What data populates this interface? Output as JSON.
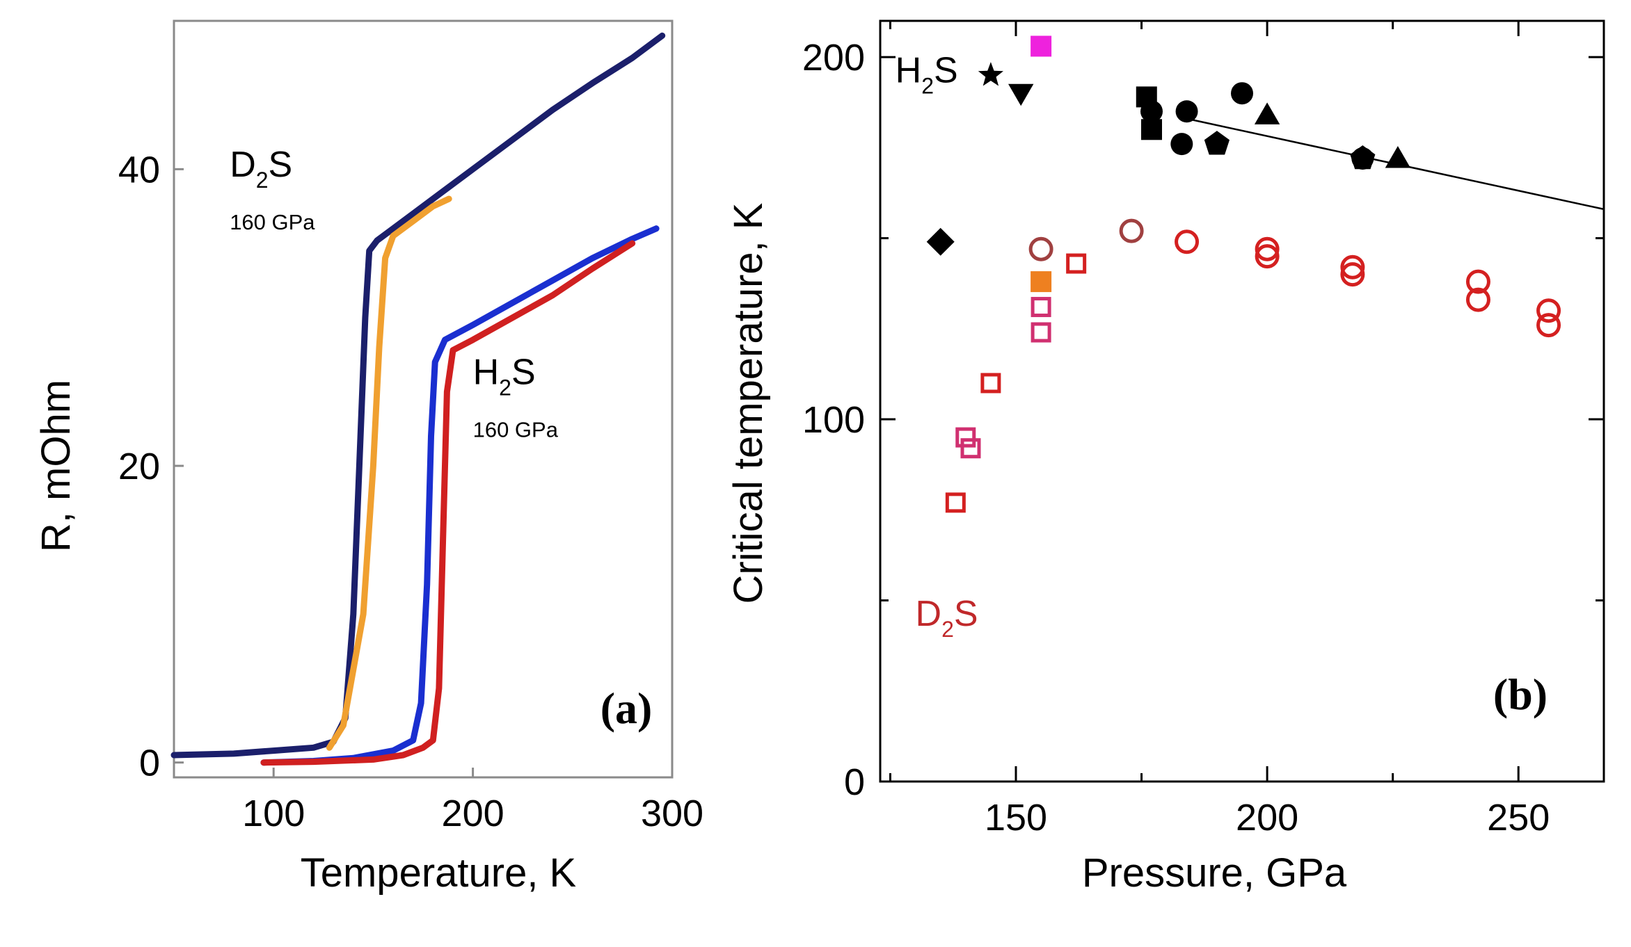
{
  "chart_data": [
    {
      "panel": "(a)",
      "type": "line",
      "xlabel": "Temperature, K",
      "ylabel": "R, mOhm",
      "xlim": [
        50,
        300
      ],
      "ylim": [
        -1,
        50
      ],
      "xticks": [
        "100",
        "200",
        "300"
      ],
      "xtick_values": [
        100,
        200,
        300
      ],
      "yticks": [
        "0",
        "20",
        "40"
      ],
      "ytick_values": [
        0,
        20,
        40
      ],
      "annotations": [
        {
          "id": "d2s",
          "main": "D",
          "sub": "2",
          "tail": "S",
          "note": "160 GPa",
          "x": 78,
          "y": 39.5
        },
        {
          "id": "h2s",
          "main": "H",
          "sub": "2",
          "tail": "S",
          "note": "160 GPa",
          "x": 200,
          "y": 25.5
        }
      ],
      "series": [
        {
          "name": "D2S dark",
          "color": "#1b1f6b",
          "points": [
            [
              50,
              0.5
            ],
            [
              80,
              0.6
            ],
            [
              100,
              0.8
            ],
            [
              120,
              1.0
            ],
            [
              130,
              1.4
            ],
            [
              136,
              3
            ],
            [
              140,
              10
            ],
            [
              143,
              20
            ],
            [
              146,
              30
            ],
            [
              148,
              34.5
            ],
            [
              152,
              35.2
            ],
            [
              160,
              36
            ],
            [
              170,
              37
            ],
            [
              180,
              38
            ],
            [
              200,
              40
            ],
            [
              220,
              42
            ],
            [
              240,
              44
            ],
            [
              260,
              45.8
            ],
            [
              280,
              47.5
            ],
            [
              295,
              49
            ]
          ]
        },
        {
          "name": "D2S orange",
          "color": "#f0a030",
          "points": [
            [
              128,
              1.0
            ],
            [
              135,
              2.5
            ],
            [
              145,
              10
            ],
            [
              150,
              20
            ],
            [
              153,
              28
            ],
            [
              156,
              34
            ],
            [
              160,
              35.5
            ],
            [
              170,
              36.5
            ],
            [
              180,
              37.5
            ],
            [
              188,
              38
            ]
          ]
        },
        {
          "name": "H2S blue",
          "color": "#1a2fd0",
          "points": [
            [
              95,
              0
            ],
            [
              120,
              0.1
            ],
            [
              140,
              0.3
            ],
            [
              160,
              0.8
            ],
            [
              170,
              1.5
            ],
            [
              174,
              4
            ],
            [
              177,
              12
            ],
            [
              179,
              22
            ],
            [
              181,
              27
            ],
            [
              186,
              28.5
            ],
            [
              200,
              29.5
            ],
            [
              220,
              31
            ],
            [
              240,
              32.5
            ],
            [
              260,
              34
            ],
            [
              280,
              35.3
            ],
            [
              292,
              36
            ]
          ]
        },
        {
          "name": "H2S red",
          "color": "#d02020",
          "points": [
            [
              95,
              0
            ],
            [
              120,
              0.05
            ],
            [
              150,
              0.2
            ],
            [
              165,
              0.5
            ],
            [
              175,
              1.0
            ],
            [
              180,
              1.5
            ],
            [
              183,
              5
            ],
            [
              185,
              15
            ],
            [
              187,
              25
            ],
            [
              190,
              27.8
            ],
            [
              200,
              28.5
            ],
            [
              220,
              30
            ],
            [
              240,
              31.5
            ],
            [
              260,
              33.3
            ],
            [
              280,
              35
            ]
          ]
        }
      ]
    },
    {
      "panel": "(b)",
      "type": "scatter",
      "xlabel": "Pressure, GPa",
      "ylabel": "Critical temperature, K",
      "xlim": [
        123,
        267
      ],
      "ylim": [
        0,
        210
      ],
      "xticks": [
        "150",
        "200",
        "250"
      ],
      "xtick_values": [
        150,
        200,
        250
      ],
      "yticks": [
        "0",
        "100",
        "200"
      ],
      "ytick_values": [
        0,
        100,
        200
      ],
      "annotations": [
        {
          "id": "h2s",
          "main": "H",
          "sub": "2",
          "tail": "S",
          "color": "#000000",
          "x": 126,
          "y": 193
        },
        {
          "id": "d2s",
          "main": "D",
          "sub": "2",
          "tail": "S",
          "color": "#c0282a",
          "x": 130,
          "y": 43
        }
      ],
      "fit_line": {
        "color": "#000000",
        "points": [
          [
            184,
            183
          ],
          [
            267,
            158
          ]
        ]
      },
      "series": [
        {
          "name": "H2S star",
          "marker": "star",
          "filled": true,
          "color": "#000000",
          "points": [
            [
              145,
              195
            ]
          ]
        },
        {
          "name": "H2S triangle down",
          "marker": "triangle-down",
          "filled": true,
          "color": "#000000",
          "points": [
            [
              151,
              190
            ]
          ]
        },
        {
          "name": "H2S diamond",
          "marker": "diamond",
          "filled": true,
          "color": "#000000",
          "points": [
            [
              135,
              149
            ]
          ]
        },
        {
          "name": "H2S square",
          "marker": "square",
          "filled": true,
          "color": "#000000",
          "points": [
            [
              176,
              189
            ],
            [
              177,
              180
            ]
          ]
        },
        {
          "name": "H2S circle",
          "marker": "circle",
          "filled": true,
          "color": "#000000",
          "points": [
            [
              177,
              185
            ],
            [
              183,
              176
            ],
            [
              184,
              185
            ],
            [
              195,
              190
            ],
            [
              219,
              172
            ]
          ]
        },
        {
          "name": "H2S pentagon",
          "marker": "pentagon",
          "filled": true,
          "color": "#000000",
          "points": [
            [
              190,
              176
            ],
            [
              219,
              172
            ]
          ]
        },
        {
          "name": "H2S triangle up",
          "marker": "triangle-up",
          "filled": true,
          "color": "#000000",
          "points": [
            [
              200,
              184
            ],
            [
              226,
              172
            ]
          ]
        },
        {
          "name": "D2S open circle",
          "marker": "circle",
          "filled": false,
          "color": "#d42020",
          "points": [
            [
              184,
              149
            ],
            [
              200,
              145
            ],
            [
              200,
              147
            ],
            [
              217,
              140
            ],
            [
              217,
              142
            ],
            [
              242,
              133
            ],
            [
              242,
              138
            ],
            [
              256,
              126
            ],
            [
              256,
              130
            ]
          ]
        },
        {
          "name": "D2S open circle brown",
          "marker": "circle",
          "filled": false,
          "color": "#a04040",
          "points": [
            [
              155,
              147
            ],
            [
              173,
              152
            ]
          ]
        },
        {
          "name": "D2S open square",
          "marker": "square",
          "filled": false,
          "color": "#d42020",
          "points": [
            [
              138,
              77
            ],
            [
              145,
              110
            ],
            [
              162,
              143
            ]
          ]
        },
        {
          "name": "D2S open square pink",
          "marker": "square",
          "filled": false,
          "color": "#d03070",
          "points": [
            [
              140,
              95
            ],
            [
              141,
              92
            ],
            [
              155,
              124
            ],
            [
              155,
              131
            ]
          ]
        },
        {
          "name": "D2S orange square",
          "marker": "square",
          "filled": true,
          "color": "#ee8020",
          "points": [
            [
              155,
              138
            ]
          ]
        },
        {
          "name": "D2S magenta square",
          "marker": "square",
          "filled": true,
          "color": "#ee22dd",
          "points": [
            [
              155,
              203
            ]
          ]
        }
      ]
    }
  ]
}
